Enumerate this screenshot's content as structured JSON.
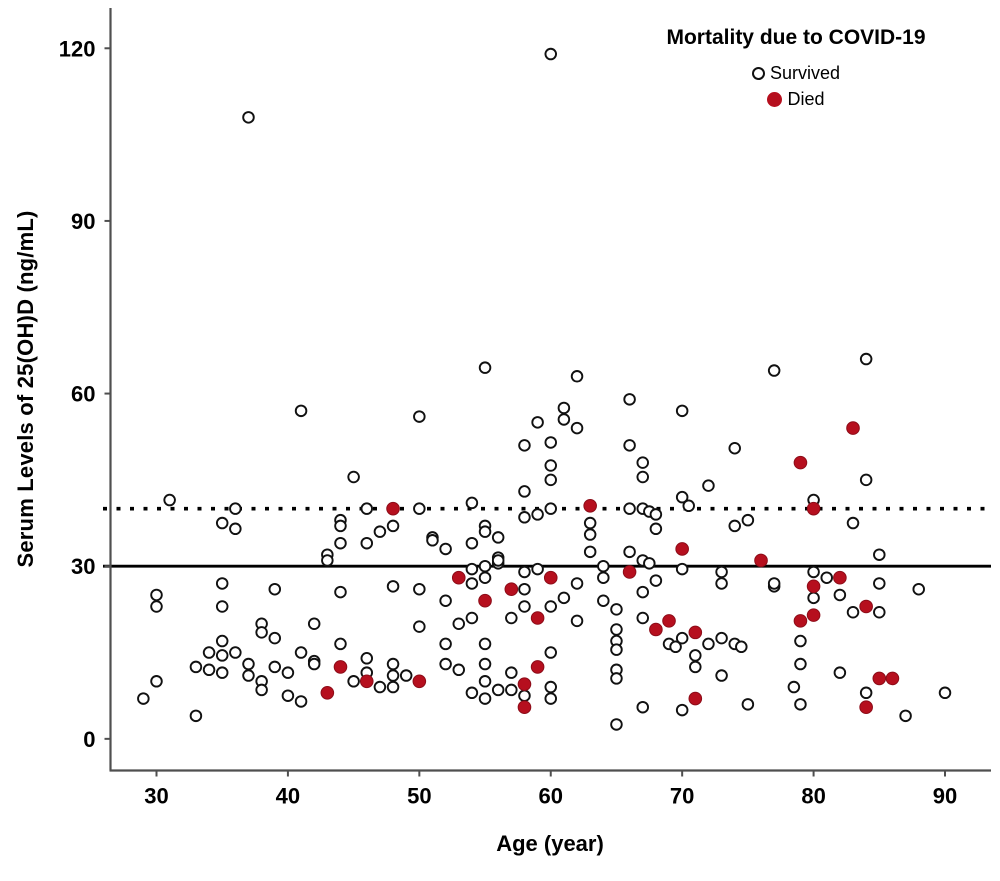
{
  "figure": {
    "y_axis_title": "Serum Levels of 25(OH)D (ng/mL)",
    "x_axis_title": "Age (year)"
  },
  "legend": {
    "title": "Mortality due to COVID-19",
    "entries": [
      {
        "label": "Survived",
        "marker": "open-circle"
      },
      {
        "label": "Died",
        "marker": "filled-circle"
      }
    ]
  },
  "colors": {
    "died_fill": "#b60f1e",
    "died_edge": "#8c0c18",
    "survived_stroke": "#111111",
    "axis": "#4f4f4f",
    "reference_line": "#000000"
  },
  "chart_data": {
    "type": "scatter",
    "title": "Mortality due to COVID-19",
    "xlabel": "Age (year)",
    "ylabel": "Serum Levels of 25(OH)D (ng/mL)",
    "xlim": [
      26.5,
      93.5
    ],
    "ylim": [
      -5.5,
      127
    ],
    "x_ticks": [
      30,
      40,
      50,
      60,
      70,
      80,
      90
    ],
    "y_ticks": [
      0,
      30,
      60,
      90,
      120
    ],
    "grid": false,
    "legend_position": "upper right inside",
    "reference_lines": [
      {
        "y": 30,
        "style": "solid"
      },
      {
        "y": 40,
        "style": "dotted"
      }
    ],
    "series": [
      {
        "name": "Survived",
        "marker": "open-circle",
        "points": [
          [
            37,
            108
          ],
          [
            60,
            119
          ],
          [
            41,
            57
          ],
          [
            50,
            56
          ],
          [
            55,
            64.5
          ],
          [
            59,
            55
          ],
          [
            58,
            51
          ],
          [
            60,
            51.5
          ],
          [
            60,
            47.5
          ],
          [
            60,
            45
          ],
          [
            45,
            45.5
          ],
          [
            62,
            63
          ],
          [
            66,
            59
          ],
          [
            61,
            57.5
          ],
          [
            61,
            55.5
          ],
          [
            62,
            54
          ],
          [
            70,
            57
          ],
          [
            66,
            51
          ],
          [
            74,
            50.5
          ],
          [
            67,
            48
          ],
          [
            67,
            45.5
          ],
          [
            72,
            44
          ],
          [
            70,
            42
          ],
          [
            70.5,
            40.5
          ],
          [
            84,
            66
          ],
          [
            77,
            64
          ],
          [
            84,
            45
          ],
          [
            80,
            41.5
          ],
          [
            31,
            41.5
          ],
          [
            36,
            40
          ],
          [
            46,
            40
          ],
          [
            50,
            40
          ],
          [
            54,
            41
          ],
          [
            58,
            43
          ],
          [
            60,
            40
          ],
          [
            66,
            40
          ],
          [
            67,
            40
          ],
          [
            67.5,
            39.5
          ],
          [
            68,
            39
          ],
          [
            35,
            37.5
          ],
          [
            36,
            36.5
          ],
          [
            58,
            38.5
          ],
          [
            59,
            39
          ],
          [
            44,
            38
          ],
          [
            44,
            37
          ],
          [
            47,
            36
          ],
          [
            48,
            37
          ],
          [
            55,
            37
          ],
          [
            55,
            36
          ],
          [
            51,
            35
          ],
          [
            51,
            34.5
          ],
          [
            56,
            35
          ],
          [
            63,
            37.5
          ],
          [
            63,
            35.5
          ],
          [
            74,
            37
          ],
          [
            75,
            38
          ],
          [
            68,
            36.5
          ],
          [
            83,
            37.5
          ],
          [
            44,
            34
          ],
          [
            46,
            34
          ],
          [
            52,
            33
          ],
          [
            54,
            34
          ],
          [
            56,
            31.5
          ],
          [
            43,
            32
          ],
          [
            43,
            31
          ],
          [
            63,
            32.5
          ],
          [
            66,
            32.5
          ],
          [
            85,
            32
          ],
          [
            64,
            30
          ],
          [
            64,
            28
          ],
          [
            67,
            31
          ],
          [
            67.5,
            30.5
          ],
          [
            56,
            30.5
          ],
          [
            56,
            31
          ],
          [
            55,
            30
          ],
          [
            54,
            29.5
          ],
          [
            55,
            28
          ],
          [
            54,
            27
          ],
          [
            58,
            29
          ],
          [
            59,
            29.5
          ],
          [
            70,
            29.5
          ],
          [
            73,
            29
          ],
          [
            80,
            29
          ],
          [
            81,
            28
          ],
          [
            30,
            25
          ],
          [
            35,
            27
          ],
          [
            39,
            26
          ],
          [
            44,
            25.5
          ],
          [
            48,
            26.5
          ],
          [
            50,
            26
          ],
          [
            62,
            27
          ],
          [
            67,
            25.5
          ],
          [
            68,
            27.5
          ],
          [
            73,
            27
          ],
          [
            77,
            26.5
          ],
          [
            77,
            27
          ],
          [
            80,
            24.5
          ],
          [
            82,
            25
          ],
          [
            85,
            27
          ],
          [
            88,
            26
          ],
          [
            58,
            26
          ],
          [
            61,
            24.5
          ],
          [
            64,
            24
          ],
          [
            30,
            23
          ],
          [
            35,
            23
          ],
          [
            42,
            20
          ],
          [
            50,
            19.5
          ],
          [
            52,
            24
          ],
          [
            53,
            20
          ],
          [
            54,
            21
          ],
          [
            57,
            21
          ],
          [
            58,
            23
          ],
          [
            60,
            23
          ],
          [
            62,
            20.5
          ],
          [
            65,
            22.5
          ],
          [
            67,
            21
          ],
          [
            83,
            22
          ],
          [
            85,
            22
          ],
          [
            38,
            20
          ],
          [
            38,
            18.5
          ],
          [
            39,
            17.5
          ],
          [
            34,
            15
          ],
          [
            35,
            17
          ],
          [
            36,
            15
          ],
          [
            41,
            15
          ],
          [
            44,
            16.5
          ],
          [
            52,
            16.5
          ],
          [
            55,
            16.5
          ],
          [
            65,
            19
          ],
          [
            65,
            17
          ],
          [
            65,
            15.5
          ],
          [
            70,
            17.5
          ],
          [
            69,
            16.5
          ],
          [
            69.5,
            16
          ],
          [
            72,
            16.5
          ],
          [
            73,
            17.5
          ],
          [
            74,
            16.5
          ],
          [
            74.5,
            16
          ],
          [
            79,
            17
          ],
          [
            60,
            15
          ],
          [
            33,
            12.5
          ],
          [
            34,
            12
          ],
          [
            35,
            11.5
          ],
          [
            35,
            14.5
          ],
          [
            37,
            13
          ],
          [
            37,
            11
          ],
          [
            39,
            12.5
          ],
          [
            40,
            11.5
          ],
          [
            42,
            13.5
          ],
          [
            42,
            13
          ],
          [
            30,
            10
          ],
          [
            45,
            10
          ],
          [
            46,
            14
          ],
          [
            46,
            11.5
          ],
          [
            48,
            13
          ],
          [
            48,
            11
          ],
          [
            49,
            11
          ],
          [
            52,
            13
          ],
          [
            53,
            12
          ],
          [
            55,
            13
          ],
          [
            55,
            10
          ],
          [
            57,
            11.5
          ],
          [
            65,
            12
          ],
          [
            65,
            10.5
          ],
          [
            71,
            14.5
          ],
          [
            71,
            12.5
          ],
          [
            73,
            11
          ],
          [
            79,
            13
          ],
          [
            82,
            11.5
          ],
          [
            29,
            7
          ],
          [
            38,
            10
          ],
          [
            38,
            8.5
          ],
          [
            40,
            7.5
          ],
          [
            41,
            6.5
          ],
          [
            47,
            9
          ],
          [
            48,
            9
          ],
          [
            54,
            8
          ],
          [
            55,
            7
          ],
          [
            56,
            8.5
          ],
          [
            57,
            8.5
          ],
          [
            58,
            7.5
          ],
          [
            60,
            9
          ],
          [
            60,
            7
          ],
          [
            67,
            5.5
          ],
          [
            70,
            5
          ],
          [
            75,
            6
          ],
          [
            78.5,
            9
          ],
          [
            79,
            6
          ],
          [
            84,
            8
          ],
          [
            90,
            8
          ],
          [
            33,
            4
          ],
          [
            65,
            2.5
          ],
          [
            87,
            4
          ]
        ]
      },
      {
        "name": "Died",
        "marker": "filled-circle",
        "points": [
          [
            48,
            40
          ],
          [
            63,
            40.5
          ],
          [
            80,
            40
          ],
          [
            83,
            54
          ],
          [
            79,
            48
          ],
          [
            70,
            33
          ],
          [
            76,
            31
          ],
          [
            66,
            29
          ],
          [
            53,
            28
          ],
          [
            60,
            28
          ],
          [
            82,
            28
          ],
          [
            80,
            26.5
          ],
          [
            57,
            26
          ],
          [
            55,
            24
          ],
          [
            84,
            23
          ],
          [
            80,
            21.5
          ],
          [
            59,
            21
          ],
          [
            79,
            20.5
          ],
          [
            69,
            20.5
          ],
          [
            68,
            19
          ],
          [
            71,
            18.5
          ],
          [
            44,
            12.5
          ],
          [
            59,
            12.5
          ],
          [
            85,
            10.5
          ],
          [
            86,
            10.5
          ],
          [
            46,
            10
          ],
          [
            50,
            10
          ],
          [
            58,
            9.5
          ],
          [
            43,
            8
          ],
          [
            71,
            7
          ],
          [
            58,
            5.5
          ],
          [
            84,
            5.5
          ]
        ]
      }
    ]
  }
}
